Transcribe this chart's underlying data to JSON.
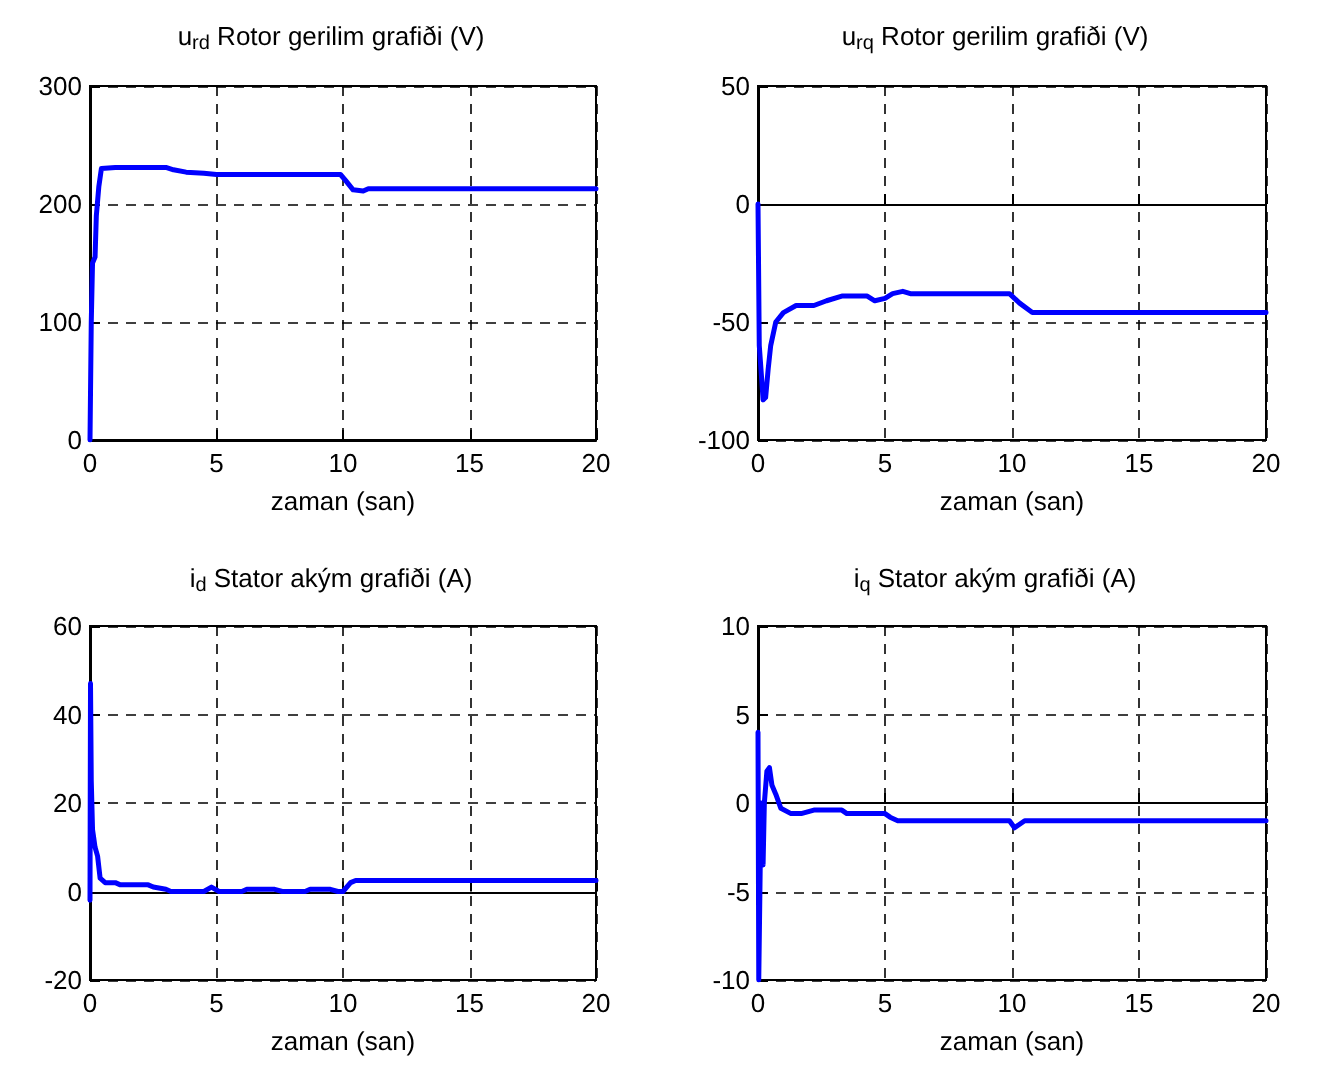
{
  "chart_data": [
    {
      "type": "line",
      "title": "u$_{rd}$ Rotor gerilim grafiði (V)",
      "xlabel": "zaman (san)",
      "xlim": [
        0,
        20
      ],
      "xticks": [
        0,
        5,
        10,
        15,
        20
      ],
      "ylim": [
        0,
        300
      ],
      "yticks": [
        0,
        100,
        200,
        300
      ],
      "grid": true,
      "series": [
        {
          "color": "#0000ff",
          "x": [
            0,
            0.05,
            0.1,
            0.2,
            0.25,
            0.35,
            0.45,
            1,
            3,
            3.3,
            3.8,
            4.5,
            5,
            9.9,
            10.1,
            10.4,
            10.8,
            11,
            20
          ],
          "values": [
            0,
            100,
            150,
            155,
            190,
            215,
            230,
            231,
            231,
            229,
            227,
            226,
            225,
            225,
            220,
            212,
            211,
            213,
            213
          ]
        }
      ]
    },
    {
      "type": "line",
      "title": "u$_{rq}$ Rotor gerilim grafiði (V)",
      "xlabel": "zaman (san)",
      "xlim": [
        0,
        20
      ],
      "xticks": [
        0,
        5,
        10,
        15,
        20
      ],
      "ylim": [
        -100,
        50
      ],
      "yticks": [
        -100,
        -50,
        0,
        50
      ],
      "grid": true,
      "series": [
        {
          "color": "#0000ff",
          "x": [
            0,
            0.05,
            0.15,
            0.2,
            0.3,
            0.4,
            0.5,
            0.7,
            1,
            1.5,
            2.2,
            2.7,
            3.3,
            4.3,
            4.6,
            5,
            5.3,
            5.7,
            6,
            9.9,
            10.3,
            10.8,
            20
          ],
          "values": [
            0,
            -60,
            -75,
            -83,
            -82,
            -70,
            -60,
            -50,
            -46,
            -43,
            -43,
            -41,
            -39,
            -39,
            -41,
            -40,
            -38,
            -37,
            -38,
            -38,
            -42,
            -46,
            -46
          ]
        }
      ]
    },
    {
      "type": "line",
      "title": "i$_{d}$ Stator akým grafiði (A)",
      "xlabel": "zaman (san)",
      "xlim": [
        0,
        20
      ],
      "xticks": [
        0,
        5,
        10,
        15,
        20
      ],
      "ylim": [
        -20,
        60
      ],
      "yticks": [
        -20,
        0,
        20,
        40,
        60
      ],
      "grid": true,
      "series": [
        {
          "color": "#0000ff",
          "x": [
            0,
            0.02,
            0.05,
            0.1,
            0.15,
            0.2,
            0.3,
            0.4,
            0.6,
            1,
            1.2,
            2.3,
            2.5,
            3,
            3.2,
            4.5,
            4.8,
            5.1,
            6,
            6.2,
            7.3,
            7.6,
            8.5,
            8.7,
            9.5,
            9.8,
            10,
            10.3,
            10.5,
            20
          ],
          "values": [
            -2,
            47,
            25,
            14,
            12,
            10,
            8,
            3,
            2,
            2,
            1.5,
            1.5,
            1,
            0.5,
            0,
            0,
            1,
            0,
            0,
            0.5,
            0.5,
            0,
            0,
            0.5,
            0.5,
            0,
            0,
            2,
            2.5,
            2.5
          ]
        }
      ]
    },
    {
      "type": "line",
      "title": "i$_{q}$ Stator akým grafiði (A)",
      "xlabel": "zaman (san)",
      "xlim": [
        0,
        20
      ],
      "xticks": [
        0,
        5,
        10,
        15,
        20
      ],
      "ylim": [
        -10,
        10
      ],
      "yticks": [
        -10,
        -5,
        0,
        5,
        10
      ],
      "grid": true,
      "series": [
        {
          "color": "#0000ff",
          "x": [
            0,
            0.03,
            0.08,
            0.12,
            0.2,
            0.25,
            0.35,
            0.45,
            0.55,
            0.7,
            0.9,
            1.3,
            1.7,
            2.2,
            3.3,
            3.5,
            5,
            5.2,
            5.5,
            9.9,
            10.1,
            10.5,
            20
          ],
          "values": [
            4,
            -10,
            -10,
            0,
            -3.5,
            0,
            1.8,
            2,
            1,
            0.5,
            -0.3,
            -0.6,
            -0.6,
            -0.4,
            -0.4,
            -0.6,
            -0.6,
            -0.8,
            -1,
            -1,
            -1.4,
            -1,
            -1
          ]
        }
      ]
    }
  ]
}
